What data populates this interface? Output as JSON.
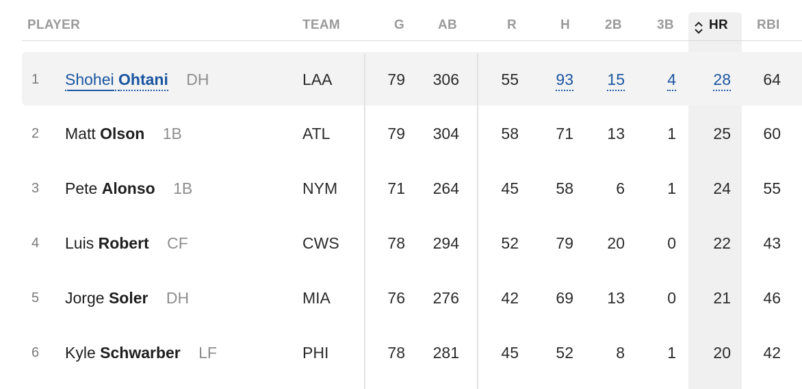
{
  "columns": {
    "player": "PLAYER",
    "team": "TEAM",
    "g": "G",
    "ab": "AB",
    "r": "R",
    "h": "H",
    "2b": "2B",
    "3b": "3B",
    "hr": "HR",
    "rbi": "RBI"
  },
  "sort": {
    "column": "HR",
    "icon": "sort-updown-icon"
  },
  "colors": {
    "link": "#1a55a0",
    "header": "#9a9a9a",
    "highlight_row": "#f3f3f3",
    "sorted_column": "#f0f0f0"
  },
  "rows": [
    {
      "rank": "1",
      "first": "Shohei",
      "last": "Ohtani",
      "pos": "DH",
      "team": "LAA",
      "g": "79",
      "ab": "306",
      "r": "55",
      "h": "93",
      "2b": "15",
      "3b": "4",
      "hr": "28",
      "rbi": "64"
    },
    {
      "rank": "2",
      "first": "Matt",
      "last": "Olson",
      "pos": "1B",
      "team": "ATL",
      "g": "79",
      "ab": "304",
      "r": "58",
      "h": "71",
      "2b": "13",
      "3b": "1",
      "hr": "25",
      "rbi": "60"
    },
    {
      "rank": "3",
      "first": "Pete",
      "last": "Alonso",
      "pos": "1B",
      "team": "NYM",
      "g": "71",
      "ab": "264",
      "r": "45",
      "h": "58",
      "2b": "6",
      "3b": "1",
      "hr": "24",
      "rbi": "55"
    },
    {
      "rank": "4",
      "first": "Luis",
      "last": "Robert",
      "pos": "CF",
      "team": "CWS",
      "g": "78",
      "ab": "294",
      "r": "52",
      "h": "79",
      "2b": "20",
      "3b": "0",
      "hr": "22",
      "rbi": "43"
    },
    {
      "rank": "5",
      "first": "Jorge",
      "last": "Soler",
      "pos": "DH",
      "team": "MIA",
      "g": "76",
      "ab": "276",
      "r": "42",
      "h": "69",
      "2b": "13",
      "3b": "0",
      "hr": "21",
      "rbi": "46"
    },
    {
      "rank": "6",
      "first": "Kyle",
      "last": "Schwarber",
      "pos": "LF",
      "team": "PHI",
      "g": "78",
      "ab": "281",
      "r": "45",
      "h": "52",
      "2b": "8",
      "3b": "1",
      "hr": "20",
      "rbi": "42"
    }
  ]
}
